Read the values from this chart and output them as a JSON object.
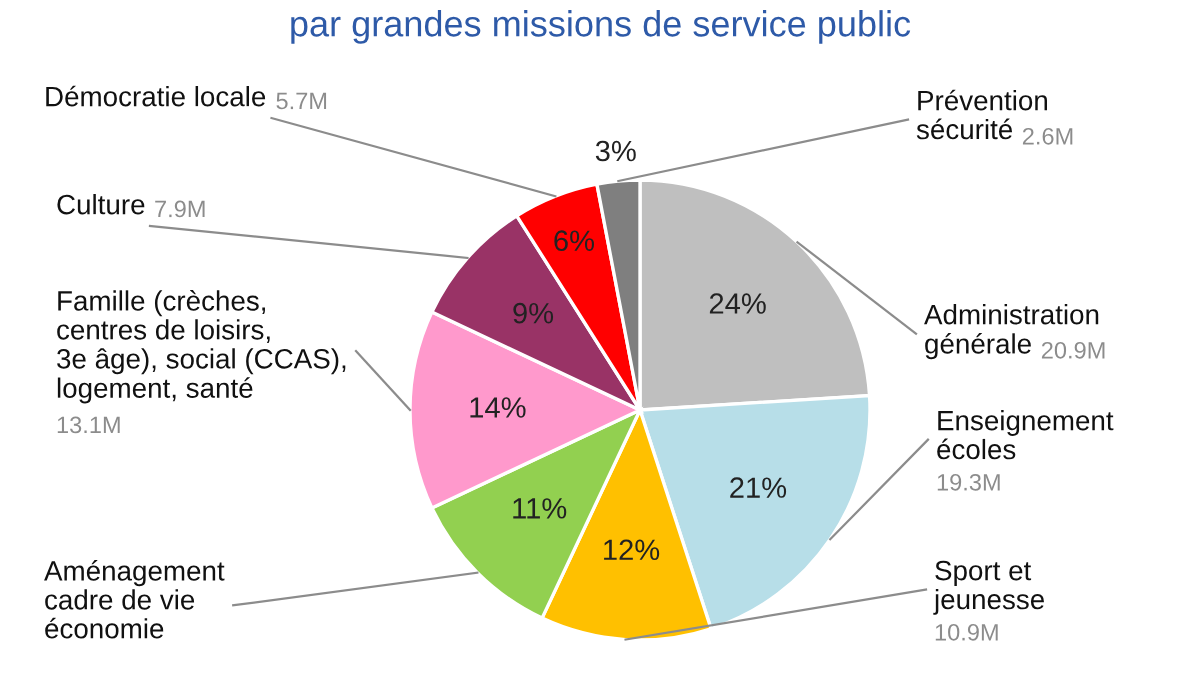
{
  "chart_data": {
    "type": "pie",
    "title": "par grandes missions de service public",
    "categories": [
      "Administration\ngénérale",
      "Enseignement\nécoles",
      "Sport et\njeunesse",
      "Aménagement\ncadre de vie\néconomie",
      "Famille (crèches,\ncentres de loisirs,\n3e âge), social (CCAS),\nlogement, santé",
      "Culture",
      "Démocratie locale",
      "Prévention\nsécurité"
    ],
    "values": [
      24,
      21,
      12,
      11,
      14,
      9,
      6,
      3
    ],
    "value_labels": [
      "24%",
      "21%",
      "12%",
      "11%",
      "14%",
      "9%",
      "6%",
      "3%"
    ],
    "colors": [
      "#bfbfbf",
      "#b7dee8",
      "#ffc000",
      "#92d050",
      "#ff99cc",
      "#993366",
      "#ff0000",
      "#7f7f7f"
    ],
    "annotations": [
      {
        "text": "20.9M",
        "x": "Administration\ngénérale"
      },
      {
        "text": "19.3M",
        "x": "Enseignement\nécoles"
      },
      {
        "text": "10.9M",
        "x": "Sport et\njeunesse"
      },
      {
        "text": "13.1M",
        "x": "Famille (crèches,\ncentres de loisirs,\n3e âge), social (CCAS),\nlogement, santé"
      },
      {
        "text": "7.9M",
        "x": "Culture"
      },
      {
        "text": "5.7M",
        "x": "Démocratie locale"
      },
      {
        "text": "2.6M",
        "x": "Prévention\nsécurité"
      }
    ]
  }
}
